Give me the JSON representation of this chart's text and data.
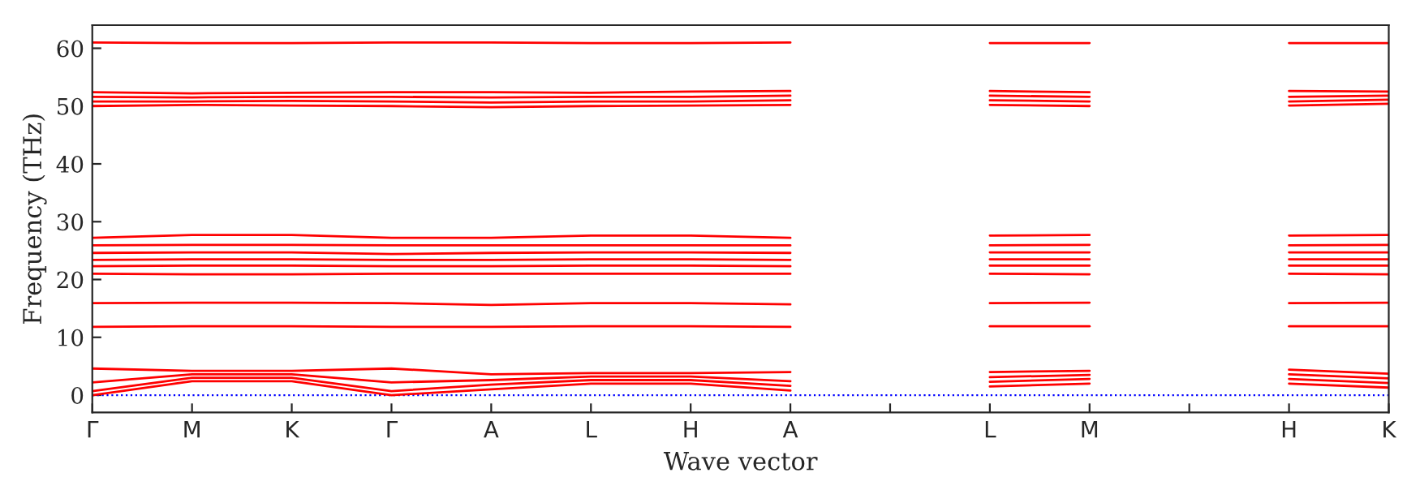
{
  "chart_data": {
    "type": "line",
    "ylabel": "Frequency (THz)",
    "xlabel": "Wave vector",
    "ylim": [
      -3,
      64
    ],
    "yticks": [
      0,
      10,
      20,
      30,
      40,
      50,
      60
    ],
    "categories": [
      "Γ",
      "M",
      "K",
      "Γ",
      "A",
      "L",
      "H",
      "A",
      null,
      "L",
      "M",
      null,
      "H",
      "K"
    ],
    "grid": false,
    "legend": false,
    "line_style": "solid",
    "marker": "none",
    "ref_lines": [
      {
        "axis": "y",
        "value": 0,
        "color": "#0000ff",
        "line_style": "dotted"
      }
    ],
    "series": [
      {
        "color": "#ff0000",
        "values": [
          0,
          2.4,
          2.4,
          0,
          1.0,
          2.0,
          2.0,
          0.8,
          null,
          null,
          null,
          null,
          null,
          null
        ]
      },
      {
        "color": "#ff0000",
        "values": [
          0.7,
          3.0,
          3.0,
          0.7,
          1.8,
          2.6,
          2.6,
          1.6,
          null,
          null,
          null,
          null,
          null,
          null
        ]
      },
      {
        "color": "#ff0000",
        "values": [
          2.2,
          3.6,
          3.6,
          2.2,
          2.6,
          3.2,
          3.2,
          2.4,
          null,
          null,
          null,
          null,
          null,
          null
        ]
      },
      {
        "color": "#ff0000",
        "values": [
          4.6,
          4.2,
          4.2,
          4.6,
          3.6,
          3.8,
          3.8,
          4.0,
          null,
          null,
          null,
          null,
          null,
          null
        ]
      },
      {
        "color": "#ff0000",
        "values": [
          11.8,
          11.9,
          11.9,
          11.8,
          11.8,
          11.9,
          11.9,
          11.8,
          null,
          null,
          null,
          null,
          null,
          null
        ]
      },
      {
        "color": "#ff0000",
        "values": [
          15.9,
          16.0,
          16.0,
          15.9,
          15.6,
          15.9,
          15.9,
          15.7,
          null,
          null,
          null,
          null,
          null,
          null
        ]
      },
      {
        "color": "#ff0000",
        "values": [
          21.0,
          20.9,
          20.9,
          21.0,
          21.0,
          21.0,
          21.0,
          21.0,
          null,
          null,
          null,
          null,
          null,
          null
        ]
      },
      {
        "color": "#ff0000",
        "values": [
          22.3,
          22.4,
          22.4,
          22.3,
          22.3,
          22.4,
          22.4,
          22.3,
          null,
          null,
          null,
          null,
          null,
          null
        ]
      },
      {
        "color": "#ff0000",
        "values": [
          23.4,
          23.5,
          23.5,
          23.4,
          23.4,
          23.5,
          23.5,
          23.4,
          null,
          null,
          null,
          null,
          null,
          null
        ]
      },
      {
        "color": "#ff0000",
        "values": [
          24.6,
          24.7,
          24.7,
          24.4,
          24.6,
          24.7,
          24.7,
          24.6,
          null,
          null,
          null,
          null,
          null,
          null
        ]
      },
      {
        "color": "#ff0000",
        "values": [
          25.9,
          26.0,
          26.0,
          25.9,
          25.9,
          25.9,
          25.9,
          25.9,
          null,
          null,
          null,
          null,
          null,
          null
        ]
      },
      {
        "color": "#ff0000",
        "values": [
          27.2,
          27.7,
          27.7,
          27.2,
          27.2,
          27.6,
          27.6,
          27.2,
          null,
          null,
          null,
          null,
          null,
          null
        ]
      },
      {
        "color": "#ff0000",
        "values": [
          50.0,
          50.2,
          50.1,
          50.0,
          49.8,
          50.0,
          50.1,
          50.2,
          null,
          null,
          null,
          null,
          null,
          null
        ]
      },
      {
        "color": "#ff0000",
        "values": [
          50.8,
          50.8,
          50.9,
          50.8,
          50.6,
          50.8,
          50.8,
          51.0,
          null,
          null,
          null,
          null,
          null,
          null
        ]
      },
      {
        "color": "#ff0000",
        "values": [
          51.6,
          51.5,
          51.6,
          51.6,
          51.5,
          51.6,
          51.6,
          51.8,
          null,
          null,
          null,
          null,
          null,
          null
        ]
      },
      {
        "color": "#ff0000",
        "values": [
          52.4,
          52.2,
          52.3,
          52.4,
          52.4,
          52.3,
          52.5,
          52.6,
          null,
          null,
          null,
          null,
          null,
          null
        ]
      },
      {
        "color": "#ff0000",
        "values": [
          61.0,
          60.9,
          60.9,
          61.0,
          61.0,
          60.9,
          60.9,
          61.0,
          null,
          null,
          null,
          null,
          null,
          null
        ]
      },
      {
        "color": "#ff0000",
        "values": [
          null,
          null,
          null,
          null,
          null,
          null,
          null,
          null,
          null,
          1.5,
          2.0,
          null,
          null,
          null
        ]
      },
      {
        "color": "#ff0000",
        "values": [
          null,
          null,
          null,
          null,
          null,
          null,
          null,
          null,
          null,
          2.3,
          2.8,
          null,
          null,
          null
        ]
      },
      {
        "color": "#ff0000",
        "values": [
          null,
          null,
          null,
          null,
          null,
          null,
          null,
          null,
          null,
          3.1,
          3.5,
          null,
          null,
          null
        ]
      },
      {
        "color": "#ff0000",
        "values": [
          null,
          null,
          null,
          null,
          null,
          null,
          null,
          null,
          null,
          4.0,
          4.2,
          null,
          null,
          null
        ]
      },
      {
        "color": "#ff0000",
        "values": [
          null,
          null,
          null,
          null,
          null,
          null,
          null,
          null,
          null,
          11.9,
          11.9,
          null,
          null,
          null
        ]
      },
      {
        "color": "#ff0000",
        "values": [
          null,
          null,
          null,
          null,
          null,
          null,
          null,
          null,
          null,
          15.9,
          16.0,
          null,
          null,
          null
        ]
      },
      {
        "color": "#ff0000",
        "values": [
          null,
          null,
          null,
          null,
          null,
          null,
          null,
          null,
          null,
          21.0,
          20.9,
          null,
          null,
          null
        ]
      },
      {
        "color": "#ff0000",
        "values": [
          null,
          null,
          null,
          null,
          null,
          null,
          null,
          null,
          null,
          22.4,
          22.4,
          null,
          null,
          null
        ]
      },
      {
        "color": "#ff0000",
        "values": [
          null,
          null,
          null,
          null,
          null,
          null,
          null,
          null,
          null,
          23.5,
          23.5,
          null,
          null,
          null
        ]
      },
      {
        "color": "#ff0000",
        "values": [
          null,
          null,
          null,
          null,
          null,
          null,
          null,
          null,
          null,
          24.7,
          24.7,
          null,
          null,
          null
        ]
      },
      {
        "color": "#ff0000",
        "values": [
          null,
          null,
          null,
          null,
          null,
          null,
          null,
          null,
          null,
          25.9,
          26.0,
          null,
          null,
          null
        ]
      },
      {
        "color": "#ff0000",
        "values": [
          null,
          null,
          null,
          null,
          null,
          null,
          null,
          null,
          null,
          27.6,
          27.7,
          null,
          null,
          null
        ]
      },
      {
        "color": "#ff0000",
        "values": [
          null,
          null,
          null,
          null,
          null,
          null,
          null,
          null,
          null,
          50.2,
          50.0,
          null,
          null,
          null
        ]
      },
      {
        "color": "#ff0000",
        "values": [
          null,
          null,
          null,
          null,
          null,
          null,
          null,
          null,
          null,
          51.0,
          50.8,
          null,
          null,
          null
        ]
      },
      {
        "color": "#ff0000",
        "values": [
          null,
          null,
          null,
          null,
          null,
          null,
          null,
          null,
          null,
          51.8,
          51.6,
          null,
          null,
          null
        ]
      },
      {
        "color": "#ff0000",
        "values": [
          null,
          null,
          null,
          null,
          null,
          null,
          null,
          null,
          null,
          52.6,
          52.4,
          null,
          null,
          null
        ]
      },
      {
        "color": "#ff0000",
        "values": [
          null,
          null,
          null,
          null,
          null,
          null,
          null,
          null,
          null,
          60.9,
          60.9,
          null,
          null,
          null
        ]
      },
      {
        "color": "#ff0000",
        "values": [
          null,
          null,
          null,
          null,
          null,
          null,
          null,
          null,
          null,
          null,
          null,
          null,
          2.0,
          1.3
        ]
      },
      {
        "color": "#ff0000",
        "values": [
          null,
          null,
          null,
          null,
          null,
          null,
          null,
          null,
          null,
          null,
          null,
          null,
          2.8,
          2.1
        ]
      },
      {
        "color": "#ff0000",
        "values": [
          null,
          null,
          null,
          null,
          null,
          null,
          null,
          null,
          null,
          null,
          null,
          null,
          3.6,
          2.9
        ]
      },
      {
        "color": "#ff0000",
        "values": [
          null,
          null,
          null,
          null,
          null,
          null,
          null,
          null,
          null,
          null,
          null,
          null,
          4.4,
          3.7
        ]
      },
      {
        "color": "#ff0000",
        "values": [
          null,
          null,
          null,
          null,
          null,
          null,
          null,
          null,
          null,
          null,
          null,
          null,
          11.9,
          11.9
        ]
      },
      {
        "color": "#ff0000",
        "values": [
          null,
          null,
          null,
          null,
          null,
          null,
          null,
          null,
          null,
          null,
          null,
          null,
          15.9,
          16.0
        ]
      },
      {
        "color": "#ff0000",
        "values": [
          null,
          null,
          null,
          null,
          null,
          null,
          null,
          null,
          null,
          null,
          null,
          null,
          21.0,
          20.9
        ]
      },
      {
        "color": "#ff0000",
        "values": [
          null,
          null,
          null,
          null,
          null,
          null,
          null,
          null,
          null,
          null,
          null,
          null,
          22.4,
          22.4
        ]
      },
      {
        "color": "#ff0000",
        "values": [
          null,
          null,
          null,
          null,
          null,
          null,
          null,
          null,
          null,
          null,
          null,
          null,
          23.5,
          23.5
        ]
      },
      {
        "color": "#ff0000",
        "values": [
          null,
          null,
          null,
          null,
          null,
          null,
          null,
          null,
          null,
          null,
          null,
          null,
          24.7,
          24.7
        ]
      },
      {
        "color": "#ff0000",
        "values": [
          null,
          null,
          null,
          null,
          null,
          null,
          null,
          null,
          null,
          null,
          null,
          null,
          25.9,
          26.0
        ]
      },
      {
        "color": "#ff0000",
        "values": [
          null,
          null,
          null,
          null,
          null,
          null,
          null,
          null,
          null,
          null,
          null,
          null,
          27.6,
          27.7
        ]
      },
      {
        "color": "#ff0000",
        "values": [
          null,
          null,
          null,
          null,
          null,
          null,
          null,
          null,
          null,
          null,
          null,
          null,
          50.1,
          50.4
        ]
      },
      {
        "color": "#ff0000",
        "values": [
          null,
          null,
          null,
          null,
          null,
          null,
          null,
          null,
          null,
          null,
          null,
          null,
          50.8,
          51.1
        ]
      },
      {
        "color": "#ff0000",
        "values": [
          null,
          null,
          null,
          null,
          null,
          null,
          null,
          null,
          null,
          null,
          null,
          null,
          51.6,
          51.8
        ]
      },
      {
        "color": "#ff0000",
        "values": [
          null,
          null,
          null,
          null,
          null,
          null,
          null,
          null,
          null,
          null,
          null,
          null,
          52.6,
          52.5
        ]
      },
      {
        "color": "#ff0000",
        "values": [
          null,
          null,
          null,
          null,
          null,
          null,
          null,
          null,
          null,
          null,
          null,
          null,
          60.9,
          60.9
        ]
      }
    ]
  }
}
